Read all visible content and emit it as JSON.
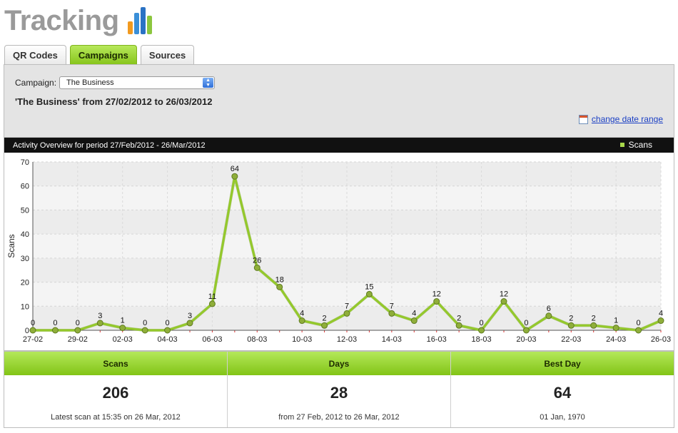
{
  "header": {
    "title": "Tracking"
  },
  "tabs": [
    {
      "label": "QR Codes",
      "active": false
    },
    {
      "label": "Campaigns",
      "active": true
    },
    {
      "label": "Sources",
      "active": false
    }
  ],
  "campaign": {
    "label": "Campaign:",
    "selected": "The Business"
  },
  "period_text": "'The Business' from 27/02/2012 to 26/03/2012",
  "date_range_link": "change date range",
  "colors": {
    "accent": "#9ad028",
    "line": "#94c92b",
    "point": "#8fae3a"
  },
  "chart_data": {
    "type": "line",
    "title": "Activity Overview for period 27/Feb/2012 - 26/Mar/2012",
    "ylabel": "Scans",
    "xlabel": "",
    "ylim": [
      0,
      70
    ],
    "yticks": [
      0,
      10,
      20,
      30,
      40,
      50,
      60,
      70
    ],
    "x": [
      "27-02",
      "28-02",
      "29-02",
      "01-03",
      "02-03",
      "03-03",
      "04-03",
      "05-03",
      "06-03",
      "07-03",
      "08-03",
      "09-03",
      "10-03",
      "11-03",
      "12-03",
      "13-03",
      "14-03",
      "15-03",
      "16-03",
      "17-03",
      "18-03",
      "19-03",
      "20-03",
      "21-03",
      "22-03",
      "23-03",
      "24-03",
      "25-03",
      "26-03"
    ],
    "xtick_labels": [
      "27-02",
      "29-02",
      "02-03",
      "04-03",
      "06-03",
      "08-03",
      "10-03",
      "12-03",
      "14-03",
      "16-03",
      "18-03",
      "20-03",
      "22-03",
      "24-03",
      "26-03"
    ],
    "series": [
      {
        "name": "Scans",
        "values": [
          0,
          0,
          0,
          3,
          1,
          0,
          0,
          3,
          11,
          64,
          26,
          18,
          4,
          2,
          7,
          15,
          7,
          4,
          12,
          2,
          0,
          12,
          0,
          6,
          2,
          2,
          1,
          0,
          4
        ]
      }
    ],
    "legend": "top-right",
    "grid": true
  },
  "stats": [
    {
      "head": "Scans",
      "value": "206",
      "sub": "Latest scan at 15:35 on 26 Mar, 2012"
    },
    {
      "head": "Days",
      "value": "28",
      "sub": "from 27 Feb, 2012 to 26 Mar, 2012"
    },
    {
      "head": "Best Day",
      "value": "64",
      "sub": "01 Jan, 1970"
    }
  ]
}
